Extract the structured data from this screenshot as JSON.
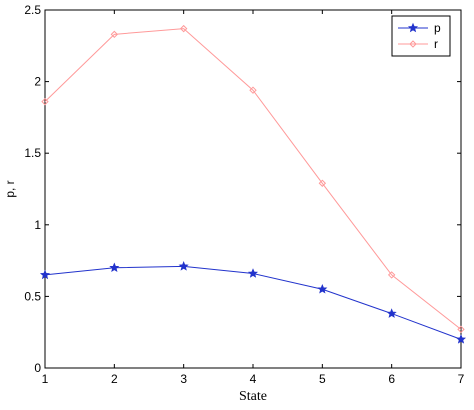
{
  "chart_data": {
    "type": "line",
    "title": "",
    "xlabel": "State",
    "ylabel": "p, r",
    "x": [
      1,
      2,
      3,
      4,
      5,
      6,
      7
    ],
    "xlim": [
      1,
      7
    ],
    "ylim": [
      0,
      2.5
    ],
    "xticks": [
      "1",
      "2",
      "3",
      "4",
      "5",
      "6",
      "7"
    ],
    "yticks": [
      "0",
      "0.5",
      "1",
      "1.5",
      "2",
      "2.5"
    ],
    "grid": false,
    "legend": "top-right",
    "series": [
      {
        "name": "p",
        "color": "#2233cc",
        "marker": "star",
        "values": [
          0.65,
          0.7,
          0.71,
          0.66,
          0.55,
          0.38,
          0.2
        ]
      },
      {
        "name": "r",
        "color": "#ff9999",
        "marker": "diamond",
        "values": [
          1.86,
          2.33,
          2.37,
          1.94,
          1.29,
          0.65,
          0.27
        ]
      }
    ]
  }
}
